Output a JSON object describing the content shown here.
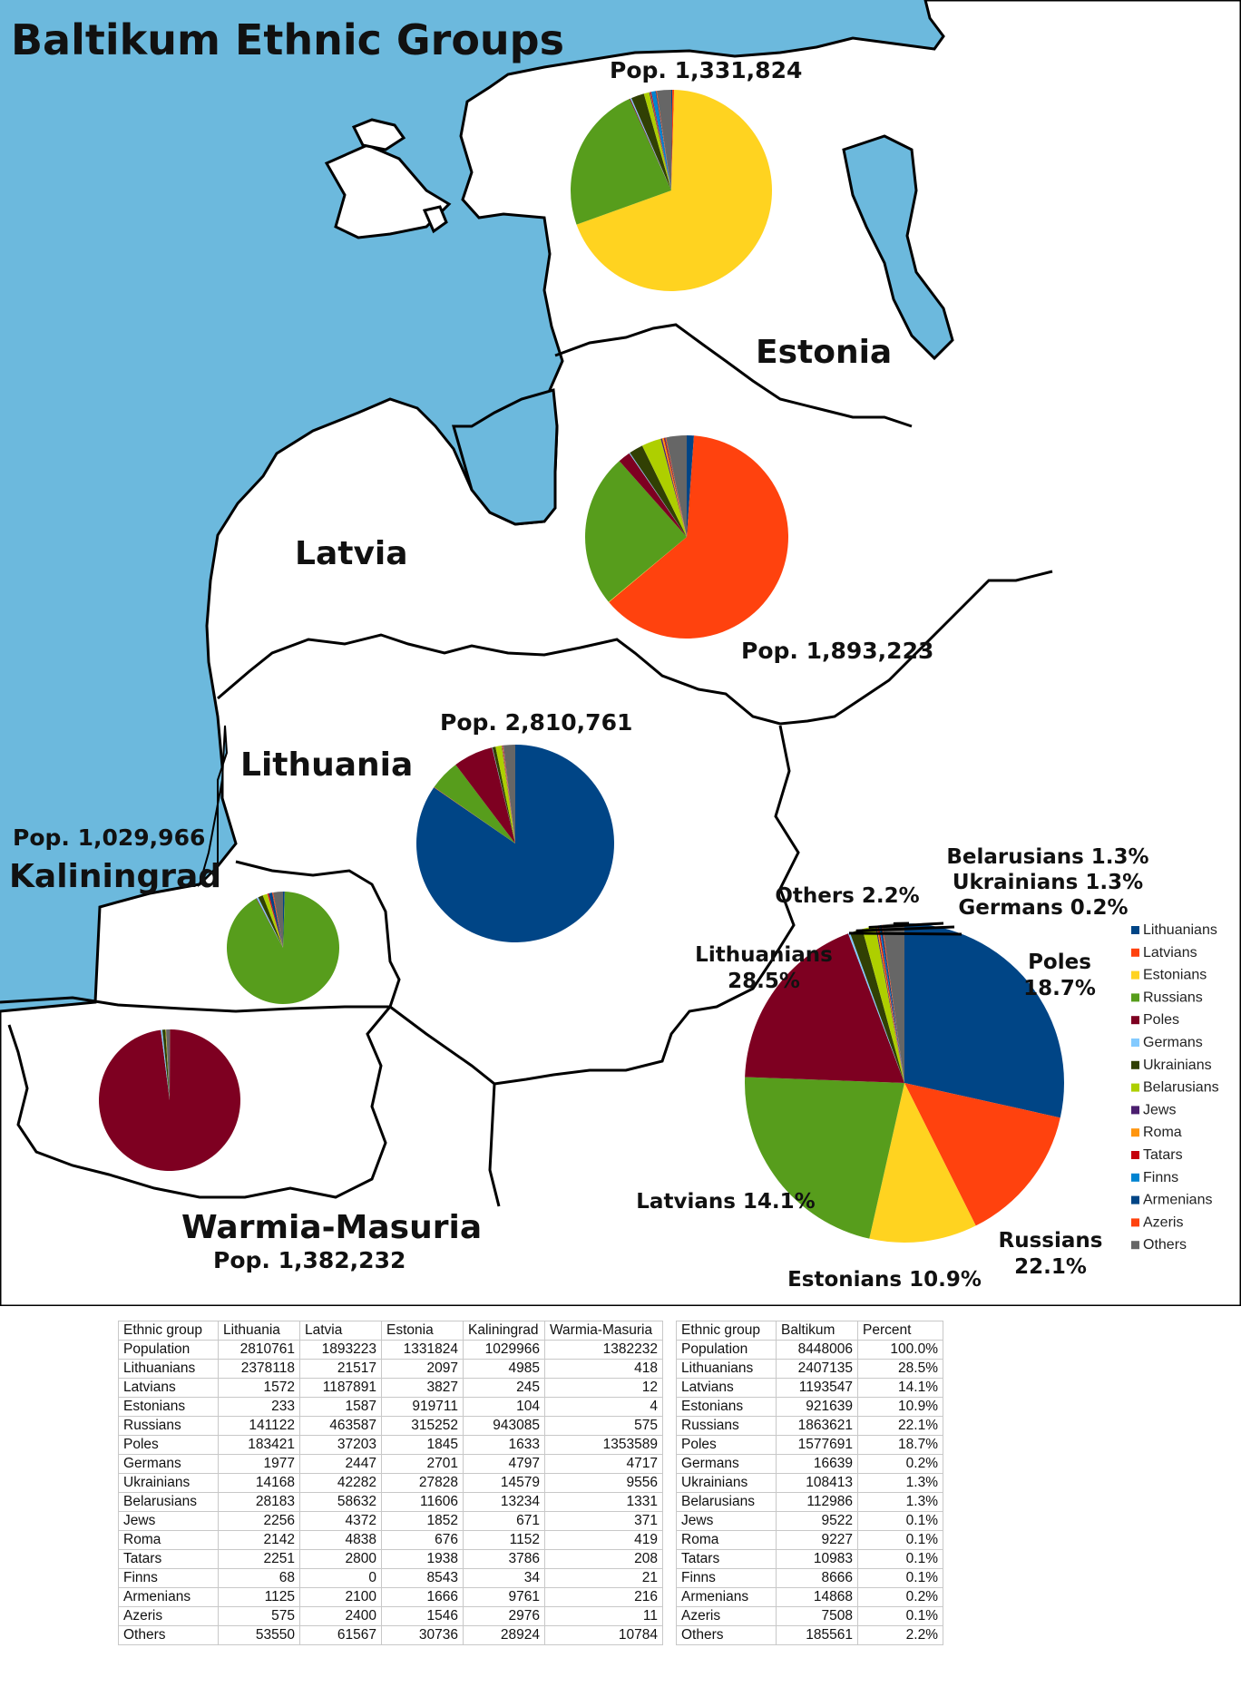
{
  "title": "Baltikum Ethnic Groups",
  "colors": {
    "Lithuanians": "#004586",
    "Latvians": "#ff420e",
    "Estonians": "#ffd320",
    "Russians": "#579d1c",
    "Poles": "#7e0021",
    "Germans": "#83caff",
    "Ukrainians": "#314004",
    "Belarusians": "#aecf00",
    "Jews": "#4b1f6f",
    "Roma": "#ff950e",
    "Tatars": "#c5000b",
    "Finns": "#0084d1",
    "Armenians": "#004586",
    "Azeris": "#ff420e",
    "Others": "#666666",
    "sea": "#6cb9dd",
    "land": "#ffffff"
  },
  "groups": [
    "Lithuanians",
    "Latvians",
    "Estonians",
    "Russians",
    "Poles",
    "Germans",
    "Ukrainians",
    "Belarusians",
    "Jews",
    "Roma",
    "Tatars",
    "Finns",
    "Armenians",
    "Azeris",
    "Others"
  ],
  "regions": {
    "estonia": {
      "name": "Estonia",
      "pop_label": "Pop. 1,331,824"
    },
    "latvia": {
      "name": "Latvia",
      "pop_label": "Pop. 1,893,223"
    },
    "lithuania": {
      "name": "Lithuania",
      "pop_label": "Pop. 2,810,761"
    },
    "kaliningrad": {
      "name": "Kaliningrad",
      "pop_label": "Pop. 1,029,966"
    },
    "warmia": {
      "name": "Warmia-Masuria",
      "pop_label": "Pop. 1,382,232"
    }
  },
  "baltikum_labels": {
    "Lithuanians": "Lithuanians 28.5%",
    "Latvians": "Latvians 14.1%",
    "Estonians": "Estonians 10.9%",
    "Russians": "Russians 22.1%",
    "Poles": "Poles 18.7%",
    "Germans": "Germans 0.2%",
    "Ukrainians": "Ukrainians 1.3%",
    "Belarusians": "Belarusians 1.3%",
    "Others": "Others 2.2%"
  },
  "table1": {
    "headers": [
      "Ethnic group",
      "Lithuania",
      "Latvia",
      "Estonia",
      "Kaliningrad",
      "Warmia-Masuria"
    ],
    "rows": [
      [
        "Population",
        "2810761",
        "1893223",
        "1331824",
        "1029966",
        "1382232"
      ],
      [
        "Lithuanians",
        "2378118",
        "21517",
        "2097",
        "4985",
        "418"
      ],
      [
        "Latvians",
        "1572",
        "1187891",
        "3827",
        "245",
        "12"
      ],
      [
        "Estonians",
        "233",
        "1587",
        "919711",
        "104",
        "4"
      ],
      [
        "Russians",
        "141122",
        "463587",
        "315252",
        "943085",
        "575"
      ],
      [
        "Poles",
        "183421",
        "37203",
        "1845",
        "1633",
        "1353589"
      ],
      [
        "Germans",
        "1977",
        "2447",
        "2701",
        "4797",
        "4717"
      ],
      [
        "Ukrainians",
        "14168",
        "42282",
        "27828",
        "14579",
        "9556"
      ],
      [
        "Belarusians",
        "28183",
        "58632",
        "11606",
        "13234",
        "1331"
      ],
      [
        "Jews",
        "2256",
        "4372",
        "1852",
        "671",
        "371"
      ],
      [
        "Roma",
        "2142",
        "4838",
        "676",
        "1152",
        "419"
      ],
      [
        "Tatars",
        "2251",
        "2800",
        "1938",
        "3786",
        "208"
      ],
      [
        "Finns",
        "68",
        "0",
        "8543",
        "34",
        "21"
      ],
      [
        "Armenians",
        "1125",
        "2100",
        "1666",
        "9761",
        "216"
      ],
      [
        "Azeris",
        "575",
        "2400",
        "1546",
        "2976",
        "11"
      ],
      [
        "Others",
        "53550",
        "61567",
        "30736",
        "28924",
        "10784"
      ]
    ]
  },
  "table2": {
    "headers": [
      "Ethnic group",
      "Baltikum",
      "Percent"
    ],
    "rows": [
      [
        "Population",
        "8448006",
        "100.0%"
      ],
      [
        "Lithuanians",
        "2407135",
        "28.5%"
      ],
      [
        "Latvians",
        "1193547",
        "14.1%"
      ],
      [
        "Estonians",
        "921639",
        "10.9%"
      ],
      [
        "Russians",
        "1863621",
        "22.1%"
      ],
      [
        "Poles",
        "1577691",
        "18.7%"
      ],
      [
        "Germans",
        "16639",
        "0.2%"
      ],
      [
        "Ukrainians",
        "108413",
        "1.3%"
      ],
      [
        "Belarusians",
        "112986",
        "1.3%"
      ],
      [
        "Jews",
        "9522",
        "0.1%"
      ],
      [
        "Roma",
        "9227",
        "0.1%"
      ],
      [
        "Tatars",
        "10983",
        "0.1%"
      ],
      [
        "Finns",
        "8666",
        "0.1%"
      ],
      [
        "Armenians",
        "14868",
        "0.2%"
      ],
      [
        "Azeris",
        "7508",
        "0.1%"
      ],
      [
        "Others",
        "185561",
        "2.2%"
      ]
    ]
  }
}
